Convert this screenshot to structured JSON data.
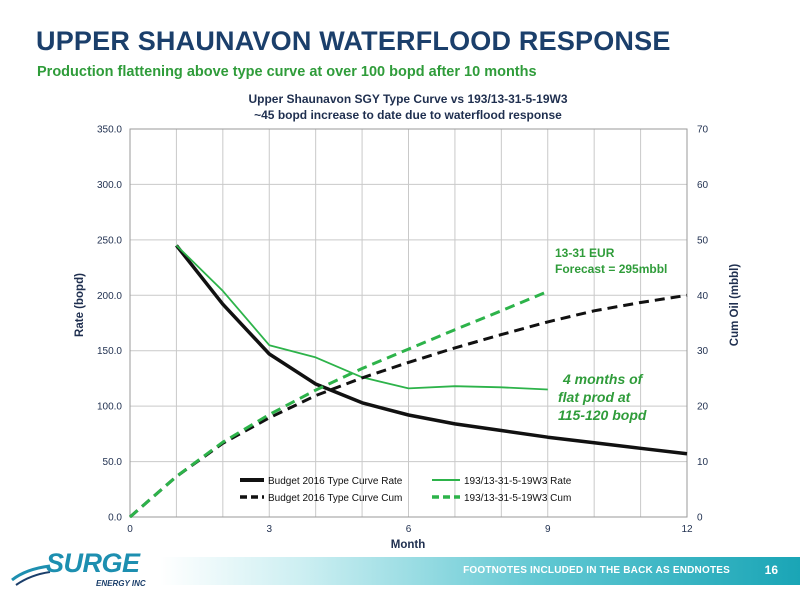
{
  "slide": {
    "title": "UPPER SHAUNAVON WATERFLOOD RESPONSE",
    "subtitle": "Production flattening above type curve at over 100 bopd after 10 months"
  },
  "footer": {
    "note": "FOOTNOTES INCLUDED IN THE BACK AS ENDNOTES",
    "page_number": "16"
  },
  "logo": {
    "name": "SURGE",
    "sub": "ENERGY INC"
  },
  "colors": {
    "title": "#1b3f6b",
    "subtitle": "#2f9c3a",
    "budget_series": "#111111",
    "well_series": "#2db34a",
    "annotation_green": "#2f9c3a",
    "footer_accent": "#1aa5b6"
  },
  "chart_data": {
    "type": "line",
    "title": "Upper Shaunavon SGY Type Curve vs 193/13-31-5-19W3",
    "subtitle": "~45 bopd increase to date due to waterflood response",
    "xlabel": "Month",
    "ylabel": "Rate (bopd)",
    "y2label": "Cum Oil (mbbl)",
    "xlim": [
      0,
      12
    ],
    "ylim": [
      0,
      350
    ],
    "y2lim": [
      0,
      70
    ],
    "x_ticks": [
      "0",
      "3",
      "6",
      "9",
      "12"
    ],
    "y_ticks": [
      "0.0",
      "50.0",
      "100.0",
      "150.0",
      "200.0",
      "250.0",
      "300.0",
      "350.0"
    ],
    "y2_ticks": [
      "0",
      "10",
      "20",
      "30",
      "40",
      "50",
      "60",
      "70"
    ],
    "grid": true,
    "legend_position": "bottom-center",
    "series": [
      {
        "name": "Budget 2016 Type Curve Rate",
        "axis": "left",
        "style": "solid",
        "color": "#111111",
        "x": [
          1,
          2,
          3,
          4,
          5,
          6,
          7,
          8,
          9,
          10,
          11,
          12
        ],
        "y": [
          245,
          192,
          147,
          120,
          103,
          92,
          84,
          78,
          72,
          67,
          62,
          57
        ]
      },
      {
        "name": "193/13-31-5-19W3 Rate",
        "axis": "left",
        "style": "solid",
        "color": "#2db34a",
        "x": [
          1,
          2,
          3,
          4,
          5,
          6,
          7,
          8,
          9
        ],
        "y": [
          245,
          204,
          155,
          144,
          126,
          116,
          118,
          117,
          115
        ]
      },
      {
        "name": "Budget 2016 Type Curve Cum",
        "axis": "right",
        "style": "dashed",
        "color": "#111111",
        "x": [
          0,
          1,
          2,
          3,
          4,
          5,
          6,
          7,
          8,
          9,
          10,
          11,
          12
        ],
        "y": [
          0,
          7.3,
          13.3,
          17.9,
          21.9,
          25.1,
          27.9,
          30.5,
          32.9,
          35.2,
          37.2,
          38.7,
          40
        ]
      },
      {
        "name": "193/13-31-5-19W3 Cum",
        "axis": "right",
        "style": "dashed",
        "color": "#2db34a",
        "x": [
          0,
          1,
          2,
          3,
          4,
          5,
          6,
          7,
          8,
          9
        ],
        "y": [
          0,
          7.3,
          13.5,
          18.5,
          22.9,
          26.8,
          30.3,
          33.8,
          37.2,
          40.7
        ]
      }
    ],
    "annotations": [
      {
        "text_lines": [
          "13-31 EUR",
          "Forecast = 295mbbl"
        ],
        "color": "#2f9c3a"
      },
      {
        "text_lines": [
          "4 months of",
          "flat prod at",
          "115-120 bopd"
        ],
        "color": "#2f9c3a",
        "style": "italic"
      }
    ]
  }
}
